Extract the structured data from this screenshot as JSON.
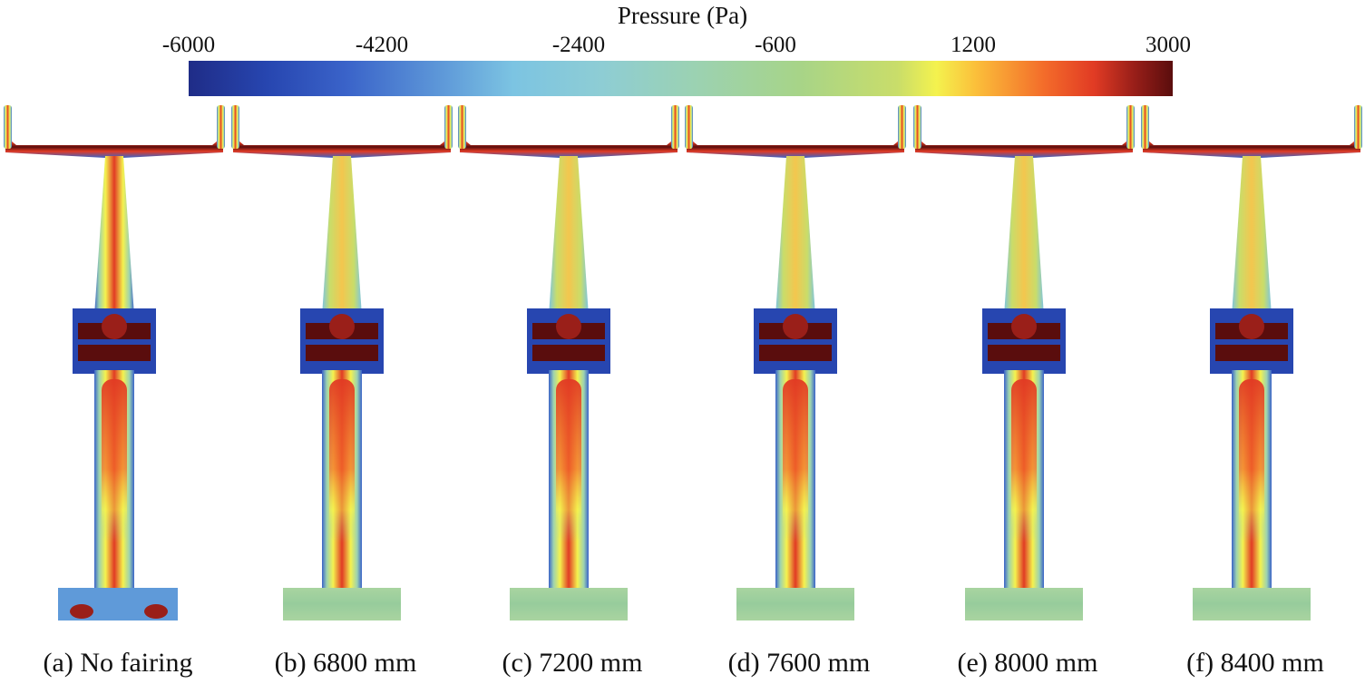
{
  "colorbar": {
    "title": "Pressure (Pa)",
    "ticks": [
      "-6000",
      "-4200",
      "-2400",
      "-600",
      "1200",
      "3000"
    ],
    "min": -6000,
    "max": 3000
  },
  "panels": [
    {
      "caption": "(a) No fairing",
      "fairing": false
    },
    {
      "caption": "(b) 6800 mm",
      "fairing": true
    },
    {
      "caption": "(c) 7200 mm",
      "fairing": true
    },
    {
      "caption": "(d) 7600 mm",
      "fairing": true
    },
    {
      "caption": "(e) 8000 mm",
      "fairing": true
    },
    {
      "caption": "(f) 8400 mm",
      "fairing": true
    }
  ],
  "colors": {
    "low": "#1f2c87",
    "mid": "#a7d488",
    "high": "#5a0d0d",
    "red": "#e13b24",
    "yellow": "#f4f24e",
    "orange": "#f36b2a"
  }
}
